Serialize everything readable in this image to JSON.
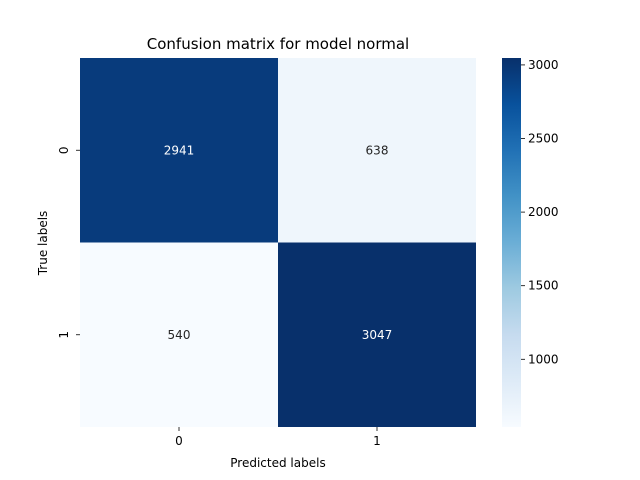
{
  "chart_data": {
    "type": "heatmap",
    "title": "Confusion matrix for model normal",
    "xlabel": "Predicted labels",
    "ylabel": "True labels",
    "x_categories": [
      "0",
      "1"
    ],
    "y_categories": [
      "0",
      "1"
    ],
    "values": [
      [
        2941,
        638
      ],
      [
        540,
        3047
      ]
    ],
    "colormap": "Blues",
    "colorbar": {
      "range": [
        540,
        3047
      ],
      "ticks": [
        1000,
        1500,
        2000,
        2500,
        3000
      ],
      "tick_labels": [
        "1000",
        "1500",
        "2000",
        "2500",
        "3000"
      ]
    },
    "colors": {
      "light_text": "#ffffff",
      "dark_text": "#262626"
    }
  }
}
